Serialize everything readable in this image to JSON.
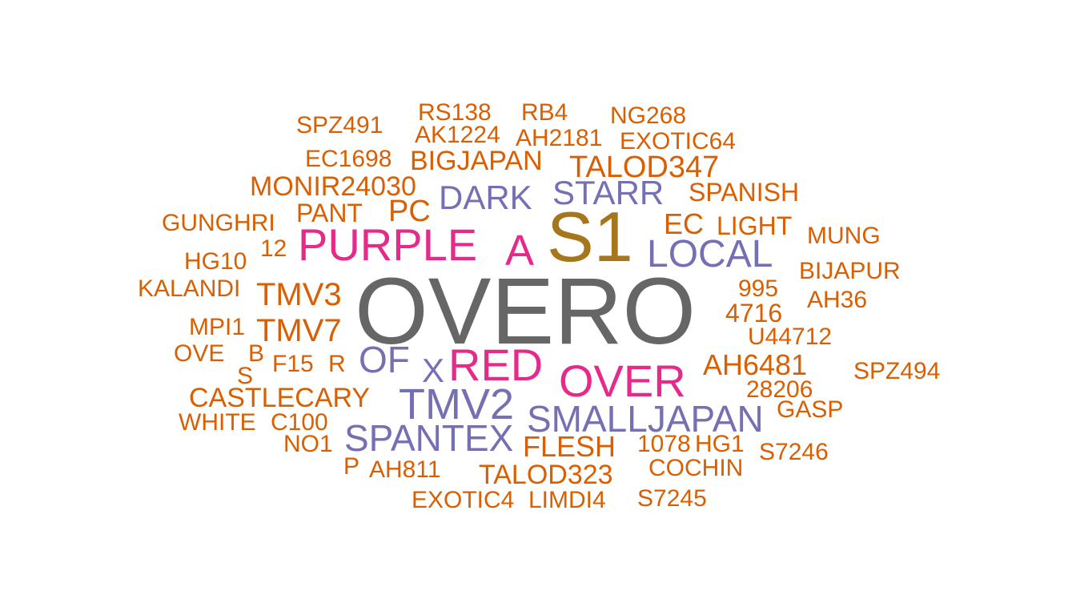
{
  "palette": {
    "gray": "#666666",
    "gold": "#A6761D",
    "pink": "#E7298A",
    "purple": "#7570B3",
    "orange": "#D95F02"
  },
  "words": [
    {
      "text": "OVERO",
      "color": "gray"
    },
    {
      "text": "S1",
      "color": "gold"
    },
    {
      "text": "PURPLE",
      "color": "pink"
    },
    {
      "text": "A",
      "color": "pink"
    },
    {
      "text": "RED",
      "color": "pink"
    },
    {
      "text": "OVER",
      "color": "pink"
    },
    {
      "text": "LOCAL",
      "color": "purple"
    },
    {
      "text": "DARK",
      "color": "purple"
    },
    {
      "text": "STARR",
      "color": "purple"
    },
    {
      "text": "TMV2",
      "color": "purple"
    },
    {
      "text": "OF",
      "color": "purple"
    },
    {
      "text": "X",
      "color": "purple"
    },
    {
      "text": "SMALLJAPAN",
      "color": "purple"
    },
    {
      "text": "SPANTEX",
      "color": "purple"
    },
    {
      "text": "SPZ491",
      "color": "orange"
    },
    {
      "text": "RS138",
      "color": "orange"
    },
    {
      "text": "RB4",
      "color": "orange"
    },
    {
      "text": "NG268",
      "color": "orange"
    },
    {
      "text": "AK1224",
      "color": "orange"
    },
    {
      "text": "AH2181",
      "color": "orange"
    },
    {
      "text": "EXOTIC64",
      "color": "orange"
    },
    {
      "text": "EC1698",
      "color": "orange"
    },
    {
      "text": "BIGJAPAN",
      "color": "orange"
    },
    {
      "text": "TALOD347",
      "color": "orange"
    },
    {
      "text": "MONIR24030",
      "color": "orange"
    },
    {
      "text": "SPANISH",
      "color": "orange"
    },
    {
      "text": "GUNGHRI",
      "color": "orange"
    },
    {
      "text": "PANT",
      "color": "orange"
    },
    {
      "text": "PC",
      "color": "orange"
    },
    {
      "text": "EC",
      "color": "orange"
    },
    {
      "text": "LIGHT",
      "color": "orange"
    },
    {
      "text": "MUNG",
      "color": "orange"
    },
    {
      "text": "HG10",
      "color": "orange"
    },
    {
      "text": "12",
      "color": "orange"
    },
    {
      "text": "BIJAPUR",
      "color": "orange"
    },
    {
      "text": "KALANDI",
      "color": "orange"
    },
    {
      "text": "TMV3",
      "color": "orange"
    },
    {
      "text": "995",
      "color": "orange"
    },
    {
      "text": "AH36",
      "color": "orange"
    },
    {
      "text": "4716",
      "color": "orange"
    },
    {
      "text": "MPI1",
      "color": "orange"
    },
    {
      "text": "TMV7",
      "color": "orange"
    },
    {
      "text": "U44712",
      "color": "orange"
    },
    {
      "text": "OVE",
      "color": "orange"
    },
    {
      "text": "B",
      "color": "orange"
    },
    {
      "text": "F15",
      "color": "orange"
    },
    {
      "text": "R",
      "color": "orange"
    },
    {
      "text": "AH6481",
      "color": "orange"
    },
    {
      "text": "SPZ494",
      "color": "orange"
    },
    {
      "text": "S",
      "color": "orange"
    },
    {
      "text": "28206",
      "color": "orange"
    },
    {
      "text": "CASTLECARY",
      "color": "orange"
    },
    {
      "text": "GASP",
      "color": "orange"
    },
    {
      "text": "WHITE",
      "color": "orange"
    },
    {
      "text": "C100",
      "color": "orange"
    },
    {
      "text": "NO1",
      "color": "orange"
    },
    {
      "text": "FLESH",
      "color": "orange"
    },
    {
      "text": "1078",
      "color": "orange"
    },
    {
      "text": "HG1",
      "color": "orange"
    },
    {
      "text": "S7246",
      "color": "orange"
    },
    {
      "text": "P",
      "color": "orange"
    },
    {
      "text": "AH811",
      "color": "orange"
    },
    {
      "text": "TALOD323",
      "color": "orange"
    },
    {
      "text": "COCHIN",
      "color": "orange"
    },
    {
      "text": "EXOTIC4",
      "color": "orange"
    },
    {
      "text": "LIMDI4",
      "color": "orange"
    },
    {
      "text": "S7245",
      "color": "orange"
    }
  ]
}
